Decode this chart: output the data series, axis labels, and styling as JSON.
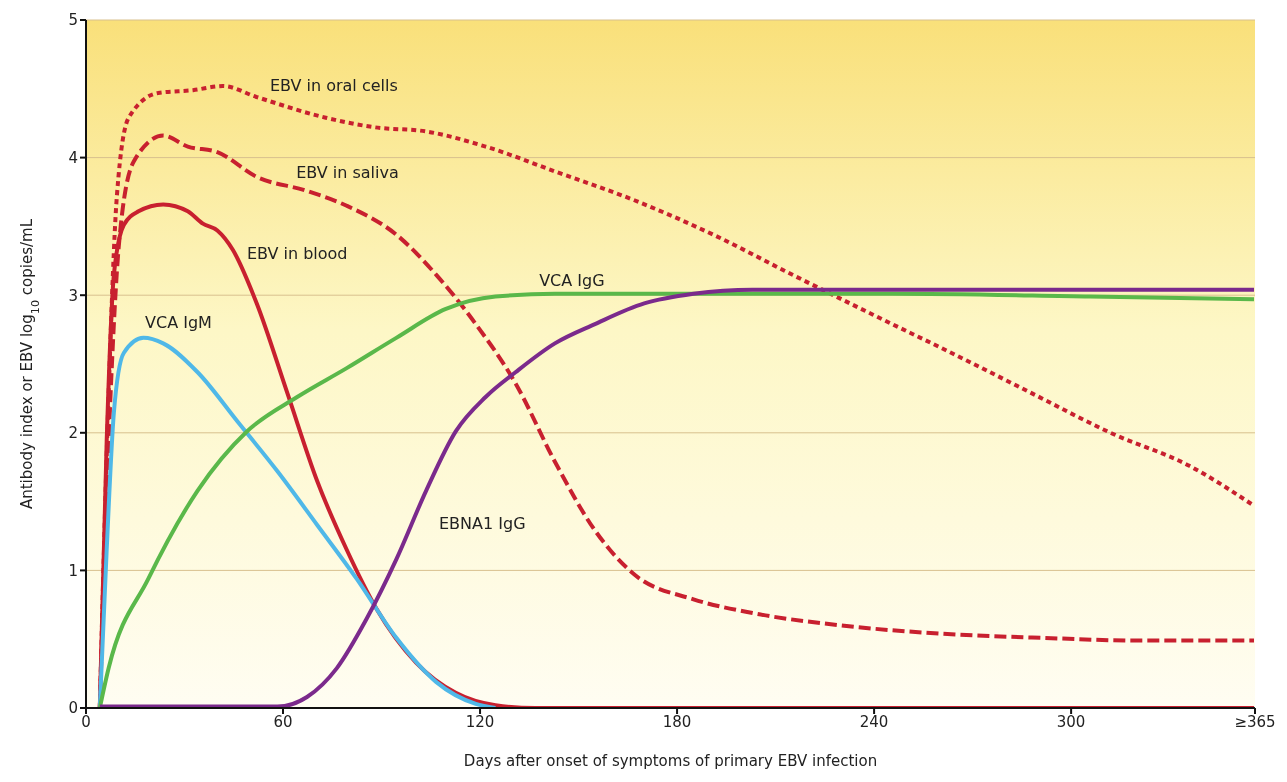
{
  "chart_data": {
    "type": "line",
    "xlabel": "Days after onset of symptoms of primary EBV infection",
    "ylabel": "Antibody index or EBV log$_{10}$ copies/mL",
    "xlim": [
      0,
      356
    ],
    "ylim": [
      0,
      5
    ],
    "xticks": [
      0,
      60,
      120,
      180,
      240,
      300,
      {
        "value": 356,
        "label": "≥365"
      }
    ],
    "yticks": [
      0,
      1,
      2,
      3,
      4,
      5
    ],
    "grid": "y",
    "marker": "none",
    "series": [
      {
        "name": "EBV in oral cells",
        "color": "#c8202f",
        "line_style": "dotted",
        "x": [
          4.2,
          6.9,
          9.4,
          13,
          22,
          32.6,
          41.7,
          52,
          73,
          88,
          103.6,
          121.7,
          142.8,
          167,
          191,
          215,
          239.5,
          263.6,
          287.8,
          312,
          336,
          355.7
        ],
        "values": [
          0,
          2.29,
          3.72,
          4.29,
          4.47,
          4.49,
          4.52,
          4.44,
          4.29,
          4.22,
          4.19,
          4.08,
          3.9,
          3.69,
          3.44,
          3.15,
          2.86,
          2.58,
          2.29,
          2.0,
          1.76,
          1.47
        ]
      },
      {
        "name": "EBV in saliva",
        "color": "#c8202f",
        "line_style": "dashed",
        "x": [
          4.2,
          7.5,
          10,
          14.5,
          23.5,
          31,
          40,
          52,
          67,
          79.4,
          94.5,
          106.6,
          118.7,
          130.8,
          142.8,
          155,
          167,
          185,
          203,
          230,
          260.6,
          290.8,
          321,
          355.7
        ],
        "values": [
          0,
          2.29,
          3.36,
          3.97,
          4.16,
          4.08,
          4.04,
          3.86,
          3.76,
          3.65,
          3.44,
          3.15,
          2.79,
          2.36,
          1.79,
          1.29,
          0.97,
          0.79,
          0.69,
          0.6,
          0.54,
          0.51,
          0.49,
          0.49
        ]
      },
      {
        "name": "EBV in blood",
        "color": "#c8202f",
        "line_style": "solid",
        "x": [
          4.2,
          6.3,
          8.5,
          11.5,
          16,
          23.5,
          31,
          35.6,
          40,
          44.7,
          52,
          61.3,
          70.4,
          79.4,
          88.5,
          100.5,
          112.6,
          124.7,
          136.8,
          355.7
        ],
        "values": [
          0,
          1.94,
          3.15,
          3.51,
          3.61,
          3.66,
          3.61,
          3.52,
          3.47,
          3.33,
          2.94,
          2.29,
          1.65,
          1.15,
          0.72,
          0.33,
          0.11,
          0.02,
          0,
          0
        ]
      },
      {
        "name": "VCA IgM",
        "color": "#4fb8e8",
        "line_style": "solid",
        "x": [
          4.2,
          6.3,
          8.5,
          11.5,
          17.5,
          23.5,
          34,
          46.2,
          58.3,
          70.4,
          82.4,
          94.5,
          106.6,
          118.7,
          124.7
        ],
        "values": [
          0,
          1.15,
          2.15,
          2.58,
          2.69,
          2.65,
          2.44,
          2.08,
          1.72,
          1.33,
          0.94,
          0.51,
          0.19,
          0.03,
          0
        ]
      },
      {
        "name": "VCA IgG",
        "color": "#5ab84a",
        "line_style": "solid",
        "x": [
          4.2,
          6.9,
          19,
          34,
          49,
          64.3,
          79.4,
          94.5,
          109.6,
          124.7,
          142.8,
          185,
          245.5,
          305.8,
          355.7
        ],
        "values": [
          0,
          0.29,
          0.94,
          1.58,
          2.01,
          2.26,
          2.47,
          2.69,
          2.9,
          2.99,
          3.01,
          3.01,
          3.01,
          2.99,
          2.97
        ]
      },
      {
        "name": "EBNA1 IgG",
        "color": "#7b2a8c",
        "line_style": "solid",
        "x": [
          4.2,
          58.3,
          67.3,
          76.4,
          85.5,
          94.5,
          103.6,
          112.6,
          121.7,
          130.8,
          142.8,
          155,
          170,
          185,
          203,
          355.7
        ],
        "values": [
          0.01,
          0.01,
          0.08,
          0.29,
          0.65,
          1.08,
          1.58,
          2.01,
          2.26,
          2.44,
          2.65,
          2.79,
          2.94,
          3.01,
          3.04,
          3.04
        ]
      }
    ]
  }
}
